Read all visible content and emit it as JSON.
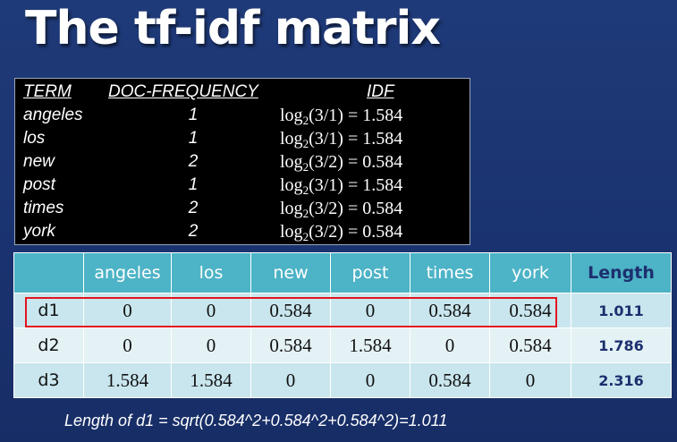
{
  "title": "The tf-idf matrix",
  "idf_table": {
    "headers": {
      "term": "TERM",
      "df": "DOC-FREQUENCY",
      "idf": "IDF"
    },
    "rows": [
      {
        "term": "angeles",
        "df": "1",
        "idf_frac": "(3/1)",
        "idf_value": "= 1.584"
      },
      {
        "term": "los",
        "df": "1",
        "idf_frac": "(3/1)",
        "idf_value": "= 1.584"
      },
      {
        "term": "new",
        "df": "2",
        "idf_frac": "(3/2)",
        "idf_value": "= 0.584"
      },
      {
        "term": "post",
        "df": "1",
        "idf_frac": "(3/1)",
        "idf_value": "= 1.584"
      },
      {
        "term": "times",
        "df": "2",
        "idf_frac": "(3/2)",
        "idf_value": "= 0.584"
      },
      {
        "term": "york",
        "df": "2",
        "idf_frac": "(3/2)",
        "idf_value": "= 0.584"
      }
    ],
    "log_label": "log",
    "log_base": "2"
  },
  "matrix": {
    "headers": [
      "",
      "angeles",
      "los",
      "new",
      "post",
      "times",
      "york",
      "Length"
    ],
    "rows": [
      {
        "doc": "d1",
        "values": [
          "0",
          "0",
          "0.584",
          "0",
          "0.584",
          "0.584"
        ],
        "length": "1.011"
      },
      {
        "doc": "d2",
        "values": [
          "0",
          "0",
          "0.584",
          "1.584",
          "0",
          "0.584"
        ],
        "length": "1.786"
      },
      {
        "doc": "d3",
        "values": [
          "1.584",
          "1.584",
          "0",
          "0",
          "0.584",
          "0"
        ],
        "length": "2.316"
      }
    ]
  },
  "footer": "Length of d1 = sqrt(0.584^2+0.584^2+0.584^2)=1.011",
  "colors": {
    "background": "#1f3a78",
    "header_teal": "#4db3c6",
    "highlight": "#e3141e",
    "length_text": "#1c2f6e"
  }
}
